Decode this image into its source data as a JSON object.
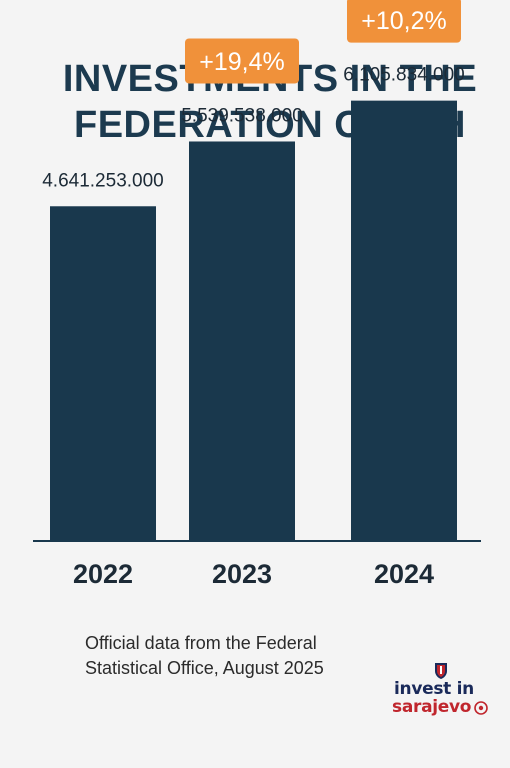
{
  "title": {
    "line1": "INVESTMENTS IN THE",
    "line2": "FEDERATION OF BIH"
  },
  "source": {
    "line1": "Official data from the Federal",
    "line2": "Statistical Office, August 2025"
  },
  "logo": {
    "text_line1": "invest in",
    "text_line2": "sarajevo"
  },
  "colors": {
    "bar": "#19384d",
    "badge": "#f0913a",
    "badge_text": "#ffffff",
    "title": "#1c3a4f",
    "axis": "#19384d",
    "text": "#1c2a36"
  },
  "chart_data": {
    "type": "bar",
    "title": "INVESTMENTS IN THE FEDERATION OF BIH",
    "categories": [
      "2022",
      "2023",
      "2024"
    ],
    "values": [
      4641253000,
      5539538000,
      6105834000
    ],
    "value_labels": [
      "4.641.253.000",
      "5.539.538.000",
      "6.105.834.000"
    ],
    "growth_labels": [
      "",
      "+19,4%",
      "+10,2%"
    ],
    "xlabel": "",
    "ylabel": "",
    "ylim": [
      0,
      6600000000
    ],
    "grid": false,
    "legend": "none"
  }
}
